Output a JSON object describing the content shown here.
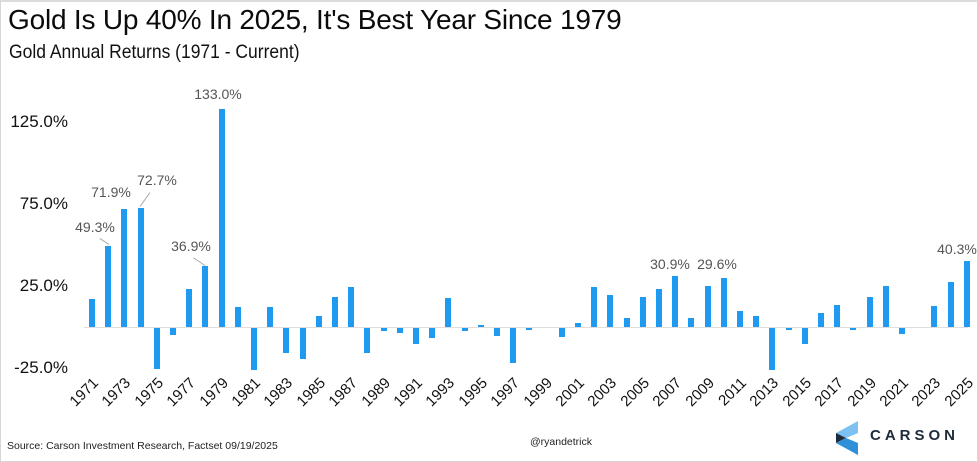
{
  "header": {
    "title": "Gold Is Up 40% In 2025, It's Best Year Since 1979",
    "subtitle": "Gold Annual Returns (1971 - Current)"
  },
  "footer": {
    "source": "Source: Carson Investment  Research, Factset 09/19/2025",
    "handle": "@ryandetrick",
    "logo_text": "CARSON"
  },
  "colors": {
    "bar": "#1e9bf0",
    "zero_line": "#e3dcdc",
    "label": "#555555",
    "logo_dark": "#1d2b3a",
    "logo_blue": "#4aa3e8"
  },
  "chart_data": {
    "type": "bar",
    "title": "Gold Is Up 40% In 2025, It's Best Year Since 1979",
    "subtitle": "Gold Annual Returns (1971 - Current)",
    "xlabel": "",
    "ylabel": "",
    "ylim": [
      -25,
      133
    ],
    "y_ticks": [
      "125.0%",
      "75.0%",
      "25.0%",
      "-25.0%"
    ],
    "y_tick_values": [
      125,
      75,
      25,
      -25
    ],
    "grid": false,
    "legend": null,
    "x_tick_labels": [
      "1971",
      "1973",
      "1975",
      "1977",
      "1979",
      "1981",
      "1983",
      "1985",
      "1987",
      "1989",
      "1991",
      "1993",
      "1995",
      "1997",
      "1999",
      "2001",
      "2003",
      "2005",
      "2007",
      "2009",
      "2011",
      "2013",
      "2015",
      "2017",
      "2019",
      "2021",
      "2023",
      "2025"
    ],
    "categories": [
      "1971",
      "1972",
      "1973",
      "1974",
      "1975",
      "1976",
      "1977",
      "1978",
      "1979",
      "1980",
      "1981",
      "1982",
      "1983",
      "1984",
      "1985",
      "1986",
      "1987",
      "1988",
      "1989",
      "1990",
      "1991",
      "1992",
      "1993",
      "1994",
      "1995",
      "1996",
      "1997",
      "1998",
      "1999",
      "2000",
      "2001",
      "2002",
      "2003",
      "2004",
      "2005",
      "2006",
      "2007",
      "2008",
      "2009",
      "2010",
      "2011",
      "2012",
      "2013",
      "2014",
      "2015",
      "2016",
      "2017",
      "2018",
      "2019",
      "2020",
      "2021",
      "2022",
      "2023",
      "2024",
      "2025"
    ],
    "values": [
      17,
      49.3,
      71.9,
      72.7,
      -25,
      -4,
      23,
      36.9,
      133.0,
      12,
      -25.5,
      12,
      -15,
      -19,
      6.5,
      18,
      24.5,
      -15.5,
      -2,
      -3,
      -10,
      -6,
      17.7,
      -2,
      1,
      -5,
      -21.5,
      -0.5,
      0,
      -5.5,
      2.4,
      24.5,
      19.5,
      5.5,
      18,
      23,
      30.9,
      5.5,
      25,
      29.6,
      10,
      7,
      -25.5,
      -1.5,
      -10,
      8.5,
      13.4,
      -1.5,
      18.3,
      25,
      -3.6,
      0,
      13,
      27.2,
      40.3
    ],
    "annotations": [
      {
        "year": "1972",
        "text": "49.3%"
      },
      {
        "year": "1973",
        "text": "71.9%"
      },
      {
        "year": "1974",
        "text": "72.7%"
      },
      {
        "year": "1978",
        "text": "36.9%"
      },
      {
        "year": "1979",
        "text": "133.0%"
      },
      {
        "year": "2007",
        "text": "30.9%"
      },
      {
        "year": "2010",
        "text": "29.6%"
      },
      {
        "year": "2025",
        "text": "40.3%"
      }
    ]
  }
}
